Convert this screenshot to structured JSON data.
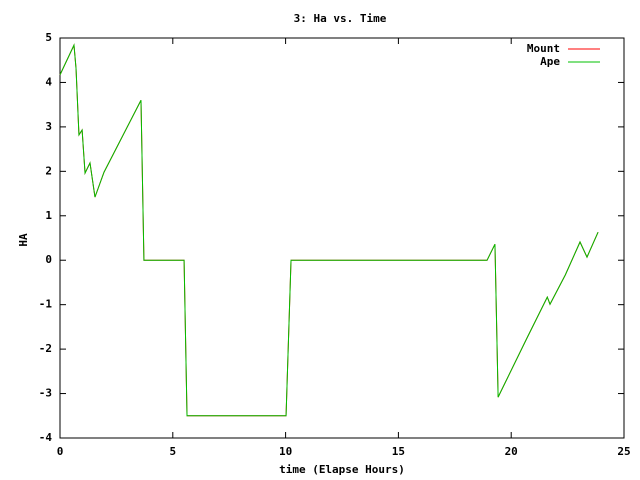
{
  "chart_data": {
    "type": "line",
    "title": "3: Ha vs. Time",
    "x_label": "time (Elapse Hours)",
    "y_label": "HA",
    "x": [
      0,
      0.62,
      0.71,
      0.84,
      0.98,
      1.11,
      1.33,
      1.55,
      1.95,
      3.59,
      3.72,
      5.5,
      5.63,
      10.02,
      10.24,
      18.93,
      19.28,
      19.42,
      20.7,
      21.6,
      21.72,
      22.4,
      23.05,
      23.36,
      23.85
    ],
    "series": [
      {
        "name": "Mount",
        "color": "#ff0000",
        "values": [
          4.17,
          4.84,
          4.32,
          2.82,
          2.93,
          1.96,
          2.19,
          1.42,
          1.98,
          3.6,
          0,
          0,
          -3.5,
          -3.5,
          0,
          0,
          0.36,
          -3.08,
          -1.75,
          -0.83,
          -0.99,
          -0.33,
          0.41,
          0.07,
          0.63
        ]
      },
      {
        "name": "Ape",
        "color": "#00c000",
        "values": [
          4.17,
          4.84,
          4.32,
          2.82,
          2.93,
          1.96,
          2.19,
          1.42,
          1.98,
          3.6,
          0,
          0,
          -3.5,
          -3.5,
          0,
          0,
          0.36,
          -3.08,
          -1.75,
          -0.83,
          -0.99,
          -0.33,
          0.41,
          0.07,
          0.63
        ]
      }
    ],
    "xlim": [
      0,
      25
    ],
    "xticks": [
      0,
      5,
      10,
      15,
      20,
      25
    ],
    "ylim": [
      -4,
      5
    ],
    "yticks": [
      -4,
      -3,
      -2,
      -1,
      0,
      1,
      2,
      3,
      4,
      5
    ],
    "legend": "top-right"
  }
}
